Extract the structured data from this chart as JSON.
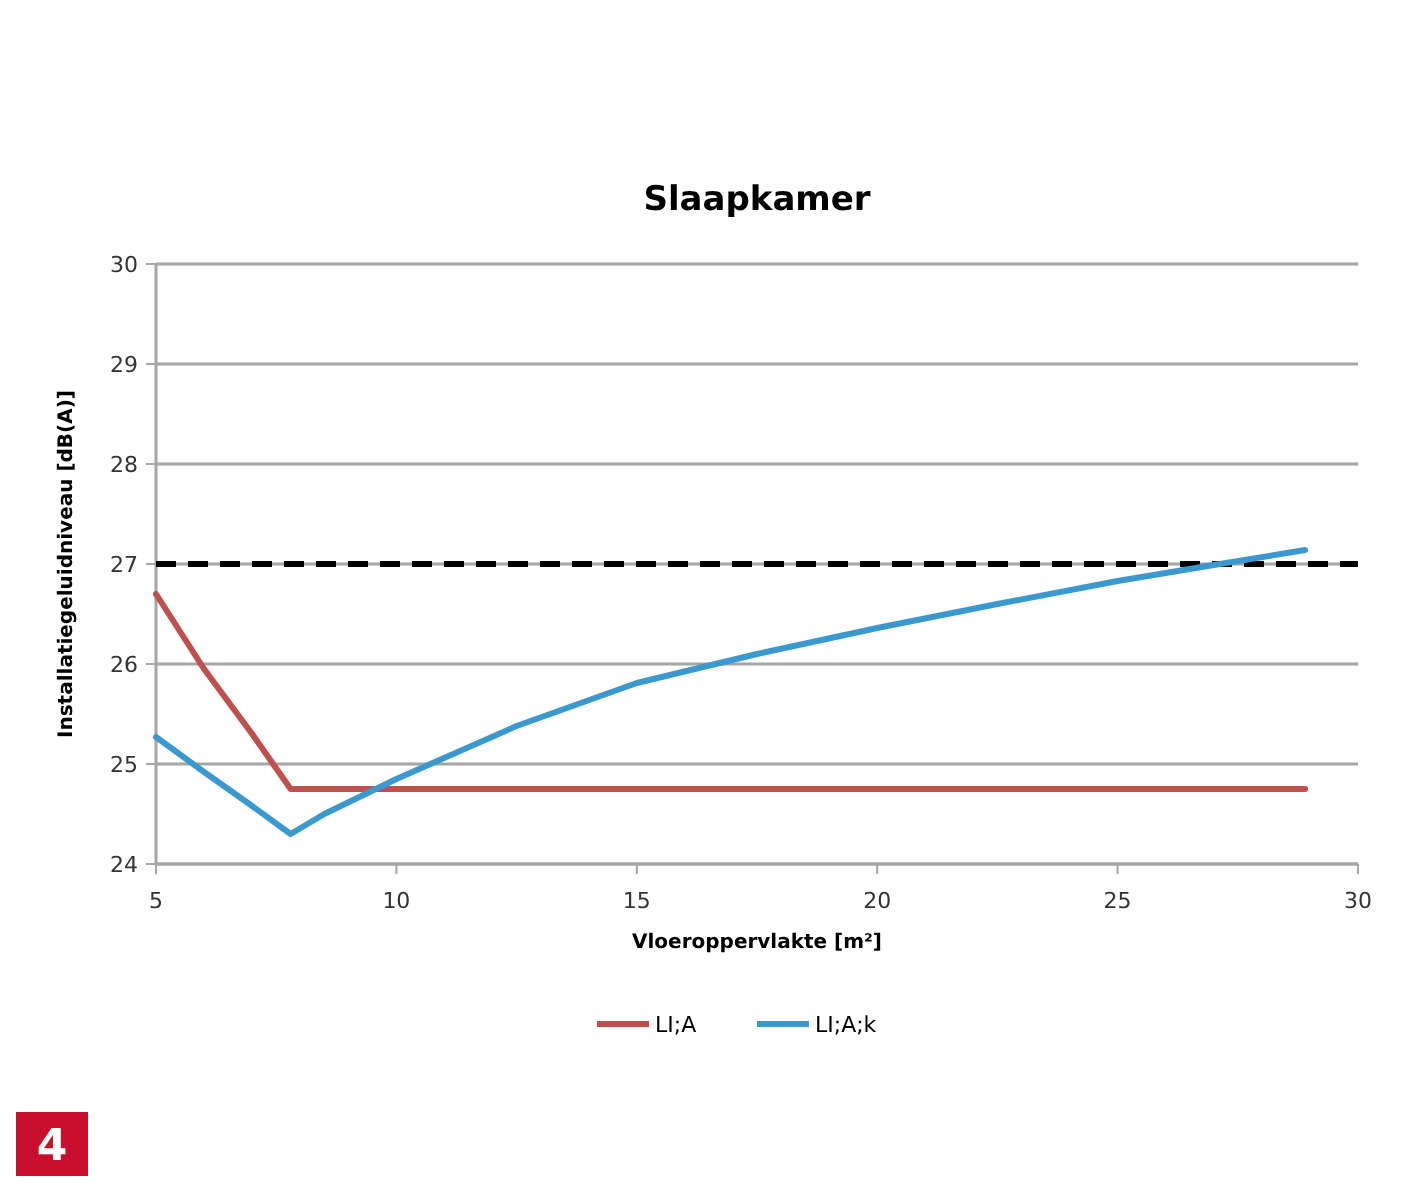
{
  "chart_data": {
    "type": "line",
    "title": "Slaapkamer",
    "xlabel": "Vloeroppervlakte [m²]",
    "ylabel": "Installatiegeluidniveau [dB(A)]",
    "xlim": [
      5,
      30
    ],
    "xticks": [
      5,
      10,
      15,
      20,
      25,
      30
    ],
    "ylim": [
      24,
      30
    ],
    "yticks": [
      24,
      25,
      26,
      27,
      28,
      29,
      30
    ],
    "grid": "y",
    "legend": "bottom",
    "line_style": "solid",
    "marker": "none",
    "series": [
      {
        "name": "LI;A",
        "color": "#c0504d",
        "x": [
          5,
          6,
          7,
          7.8,
          10,
          15,
          20,
          25,
          28.9
        ],
        "values": [
          26.7,
          25.95,
          25.3,
          24.75,
          24.75,
          24.75,
          24.75,
          24.75,
          24.75
        ]
      },
      {
        "name": "LI;A;k",
        "color": "#3a9ad0",
        "x": [
          5,
          6,
          7,
          7.8,
          8.5,
          10,
          12.5,
          15,
          17.5,
          20,
          22.5,
          25,
          27,
          28.9
        ],
        "values": [
          25.27,
          24.92,
          24.58,
          24.3,
          24.5,
          24.85,
          25.38,
          25.81,
          26.1,
          26.36,
          26.6,
          26.83,
          26.99,
          27.14
        ]
      }
    ],
    "ref_lines": [
      {
        "axis": "y",
        "value": 27,
        "color": "#000000",
        "line_style": "dashed"
      }
    ],
    "annotations": [
      "4"
    ]
  }
}
